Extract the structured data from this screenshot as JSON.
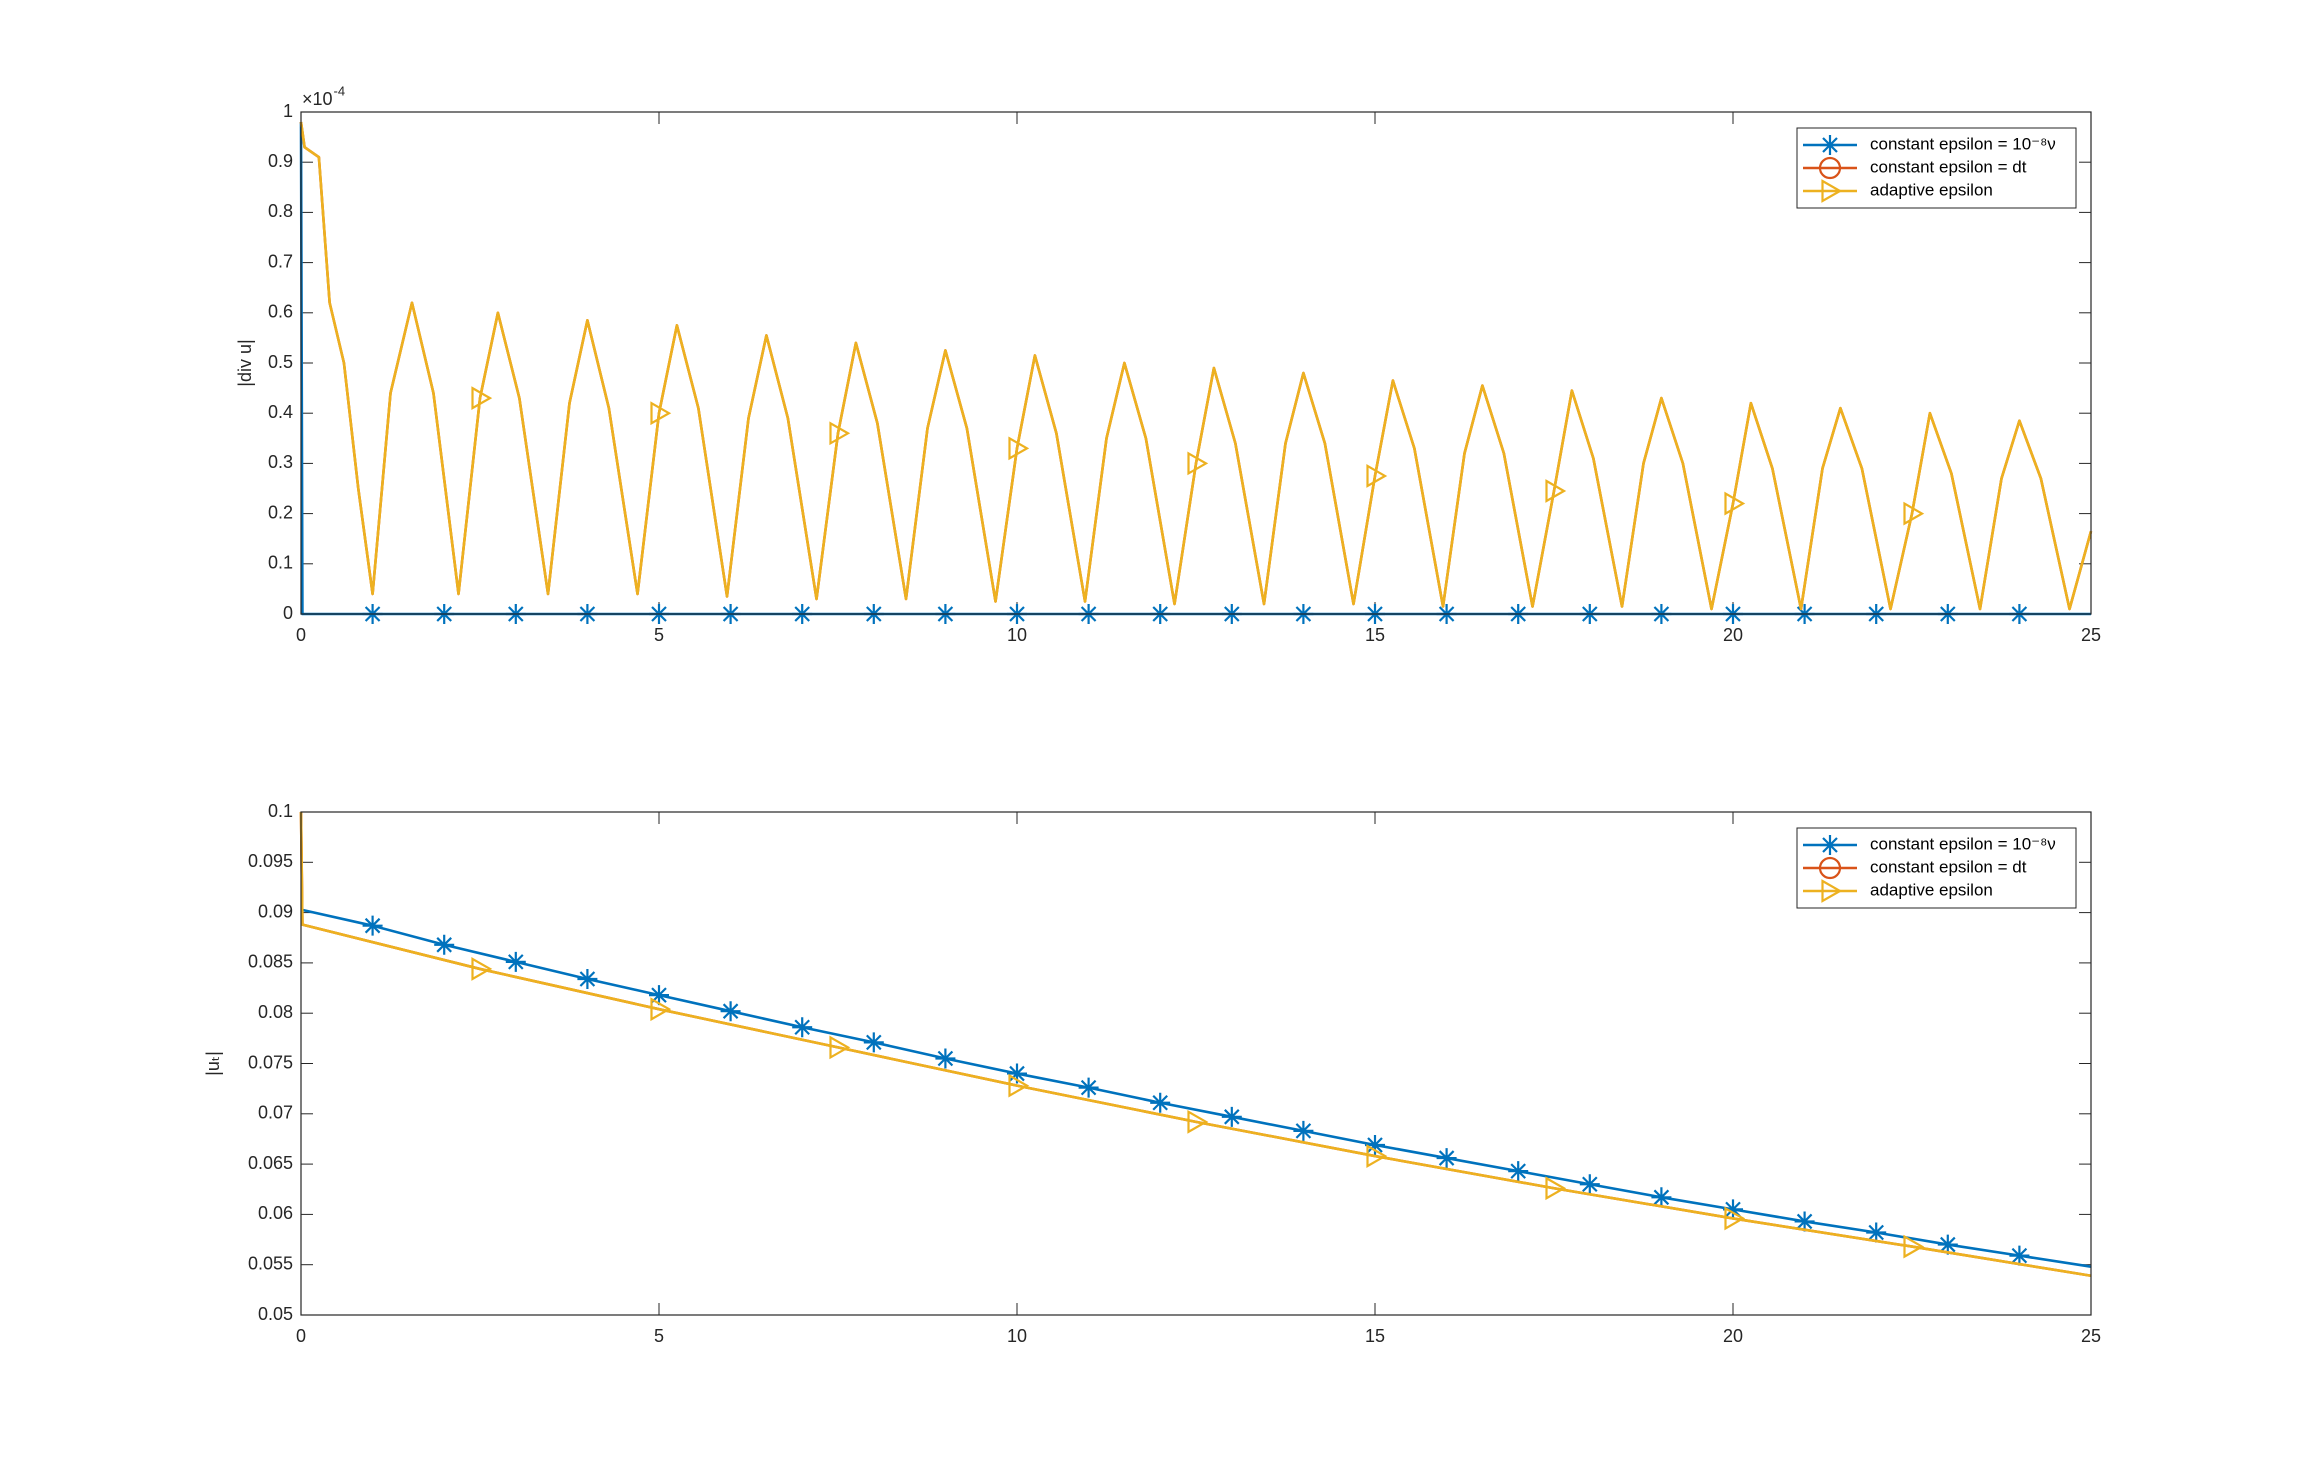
{
  "chart_data": [
    {
      "type": "line",
      "y_label": "|div u|",
      "y_multiplier": "×10",
      "y_exponent": "-4",
      "xlim": [
        0,
        25
      ],
      "xticks": [
        0,
        5,
        10,
        15,
        20,
        25
      ],
      "ylim": [
        0,
        1
      ],
      "yticks": [
        0,
        0.1,
        0.2,
        0.3,
        0.4,
        0.5,
        0.6,
        0.7,
        0.8,
        0.9,
        1
      ],
      "legend": "upper right",
      "series": [
        {
          "name": "constant epsilon = 10⁻⁸ν",
          "color": "#0072bd",
          "marker": "asterisk",
          "x": [
            0,
            0.02,
            1,
            2,
            3,
            4,
            5,
            6,
            7,
            8,
            9,
            10,
            11,
            12,
            13,
            14,
            15,
            16,
            17,
            18,
            19,
            20,
            21,
            22,
            23,
            24,
            25
          ],
          "values": [
            0.98,
            0,
            0,
            0,
            0,
            0,
            0,
            0,
            0,
            0,
            0,
            0,
            0,
            0,
            0,
            0,
            0,
            0,
            0,
            0,
            0,
            0,
            0,
            0,
            0,
            0,
            0
          ],
          "marker_indices": [
            2,
            3,
            4,
            5,
            6,
            7,
            8,
            9,
            10,
            11,
            12,
            13,
            14,
            15,
            16,
            17,
            18,
            19,
            20,
            21,
            22,
            23,
            24,
            25
          ]
        },
        {
          "name": "constant epsilon = dt",
          "color": "#d95319",
          "marker": "circle",
          "x": [
            0,
            0.05,
            0.25,
            0.4,
            0.6,
            0.8,
            1.0,
            1.25,
            1.55,
            1.85,
            2.2,
            2.5,
            2.75,
            3.05,
            3.45,
            3.75,
            4.0,
            4.3,
            4.7,
            5.0,
            5.25,
            5.55,
            5.95,
            6.25,
            6.5,
            6.8,
            7.2,
            7.5,
            7.75,
            8.05,
            8.45,
            8.75,
            9.0,
            9.3,
            9.7,
            10.0,
            10.25,
            10.55,
            10.95,
            11.25,
            11.5,
            11.8,
            12.2,
            12.5,
            12.75,
            13.05,
            13.45,
            13.75,
            14.0,
            14.3,
            14.7,
            15.0,
            15.25,
            15.55,
            15.95,
            16.25,
            16.5,
            16.8,
            17.2,
            17.5,
            17.75,
            18.05,
            18.45,
            18.75,
            19.0,
            19.3,
            19.7,
            20.0,
            20.25,
            20.55,
            20.95,
            21.25,
            21.5,
            21.8,
            22.2,
            22.5,
            22.75,
            23.05,
            23.45,
            23.75,
            24.0,
            24.3,
            24.7,
            25
          ],
          "values": [
            0.98,
            0.93,
            0.91,
            0.62,
            0.5,
            0.25,
            0.04,
            0.44,
            0.62,
            0.44,
            0.04,
            0.43,
            0.6,
            0.43,
            0.04,
            0.42,
            0.585,
            0.41,
            0.04,
            0.4,
            0.575,
            0.41,
            0.035,
            0.39,
            0.555,
            0.39,
            0.03,
            0.36,
            0.54,
            0.38,
            0.03,
            0.37,
            0.525,
            0.37,
            0.025,
            0.33,
            0.515,
            0.36,
            0.025,
            0.35,
            0.5,
            0.35,
            0.02,
            0.3,
            0.49,
            0.34,
            0.02,
            0.34,
            0.48,
            0.34,
            0.02,
            0.275,
            0.465,
            0.33,
            0.015,
            0.32,
            0.455,
            0.32,
            0.015,
            0.245,
            0.445,
            0.31,
            0.015,
            0.3,
            0.43,
            0.3,
            0.01,
            0.22,
            0.42,
            0.29,
            0.01,
            0.29,
            0.41,
            0.29,
            0.01,
            0.2,
            0.4,
            0.28,
            0.01,
            0.27,
            0.385,
            0.27,
            0.01,
            0.165
          ]
        },
        {
          "name": "adaptive epsilon",
          "color": "#edb120",
          "marker": "triangle-right",
          "x": [
            0,
            0.05,
            0.25,
            0.4,
            0.6,
            0.8,
            1.0,
            1.25,
            1.55,
            1.85,
            2.2,
            2.5,
            2.75,
            3.05,
            3.45,
            3.75,
            4.0,
            4.3,
            4.7,
            5.0,
            5.25,
            5.55,
            5.95,
            6.25,
            6.5,
            6.8,
            7.2,
            7.5,
            7.75,
            8.05,
            8.45,
            8.75,
            9.0,
            9.3,
            9.7,
            10.0,
            10.25,
            10.55,
            10.95,
            11.25,
            11.5,
            11.8,
            12.2,
            12.5,
            12.75,
            13.05,
            13.45,
            13.75,
            14.0,
            14.3,
            14.7,
            15.0,
            15.25,
            15.55,
            15.95,
            16.25,
            16.5,
            16.8,
            17.2,
            17.5,
            17.75,
            18.05,
            18.45,
            18.75,
            19.0,
            19.3,
            19.7,
            20.0,
            20.25,
            20.55,
            20.95,
            21.25,
            21.5,
            21.8,
            22.2,
            22.5,
            22.75,
            23.05,
            23.45,
            23.75,
            24.0,
            24.3,
            24.7,
            25
          ],
          "values": [
            0.98,
            0.93,
            0.91,
            0.62,
            0.5,
            0.25,
            0.04,
            0.44,
            0.62,
            0.44,
            0.04,
            0.43,
            0.6,
            0.43,
            0.04,
            0.42,
            0.585,
            0.41,
            0.04,
            0.4,
            0.575,
            0.41,
            0.035,
            0.39,
            0.555,
            0.39,
            0.03,
            0.36,
            0.54,
            0.38,
            0.03,
            0.37,
            0.525,
            0.37,
            0.025,
            0.33,
            0.515,
            0.36,
            0.025,
            0.35,
            0.5,
            0.35,
            0.02,
            0.3,
            0.49,
            0.34,
            0.02,
            0.34,
            0.48,
            0.34,
            0.02,
            0.275,
            0.465,
            0.33,
            0.015,
            0.32,
            0.455,
            0.32,
            0.015,
            0.245,
            0.445,
            0.31,
            0.015,
            0.3,
            0.43,
            0.3,
            0.01,
            0.22,
            0.42,
            0.29,
            0.01,
            0.29,
            0.41,
            0.29,
            0.01,
            0.2,
            0.4,
            0.28,
            0.01,
            0.27,
            0.385,
            0.27,
            0.01,
            0.165
          ],
          "marker_indices": [
            11,
            19,
            27,
            35,
            43,
            51,
            59,
            67,
            75
          ]
        }
      ]
    },
    {
      "type": "line",
      "y_label": "|uₜ|",
      "xlim": [
        0,
        25
      ],
      "xticks": [
        0,
        5,
        10,
        15,
        20,
        25
      ],
      "ylim": [
        0.05,
        0.1
      ],
      "yticks": [
        0.05,
        0.055,
        0.06,
        0.065,
        0.07,
        0.075,
        0.08,
        0.085,
        0.09,
        0.095,
        0.1
      ],
      "legend": "upper right",
      "series": [
        {
          "name": "constant epsilon = 10⁻⁸ν",
          "color": "#0072bd",
          "marker": "asterisk",
          "x": [
            0,
            1,
            2,
            3,
            4,
            5,
            6,
            7,
            8,
            9,
            10,
            11,
            12,
            13,
            14,
            15,
            16,
            17,
            18,
            19,
            20,
            21,
            22,
            23,
            24,
            25
          ],
          "values": [
            0.0903,
            0.0887,
            0.0868,
            0.0851,
            0.0834,
            0.0818,
            0.0802,
            0.0786,
            0.0771,
            0.0755,
            0.074,
            0.0726,
            0.0711,
            0.0697,
            0.0683,
            0.0669,
            0.0656,
            0.0643,
            0.063,
            0.0617,
            0.0605,
            0.0593,
            0.0582,
            0.057,
            0.0559,
            0.0548
          ],
          "marker_indices": [
            1,
            2,
            3,
            4,
            5,
            6,
            7,
            8,
            9,
            10,
            11,
            12,
            13,
            14,
            15,
            16,
            17,
            18,
            19,
            20,
            21,
            22,
            23,
            24
          ]
        },
        {
          "name": "constant epsilon = dt",
          "color": "#d95319",
          "marker": "circle",
          "x": [
            0,
            0.02,
            2.5,
            5,
            7.5,
            10,
            12.5,
            15,
            17.5,
            20,
            22.5,
            25
          ],
          "values": [
            0.1,
            0.0888,
            0.0844,
            0.0804,
            0.0766,
            0.0728,
            0.0692,
            0.0658,
            0.0626,
            0.0596,
            0.0568,
            0.0539
          ]
        },
        {
          "name": "adaptive epsilon",
          "color": "#edb120",
          "marker": "triangle-right",
          "x": [
            0,
            0.02,
            2.5,
            5,
            7.5,
            10,
            12.5,
            15,
            17.5,
            20,
            22.5,
            25
          ],
          "values": [
            0.1,
            0.0888,
            0.0844,
            0.0804,
            0.0766,
            0.0728,
            0.0692,
            0.0658,
            0.0626,
            0.0596,
            0.0568,
            0.0539
          ],
          "marker_indices": [
            2,
            3,
            4,
            5,
            6,
            7,
            8,
            9,
            10
          ]
        }
      ]
    }
  ]
}
